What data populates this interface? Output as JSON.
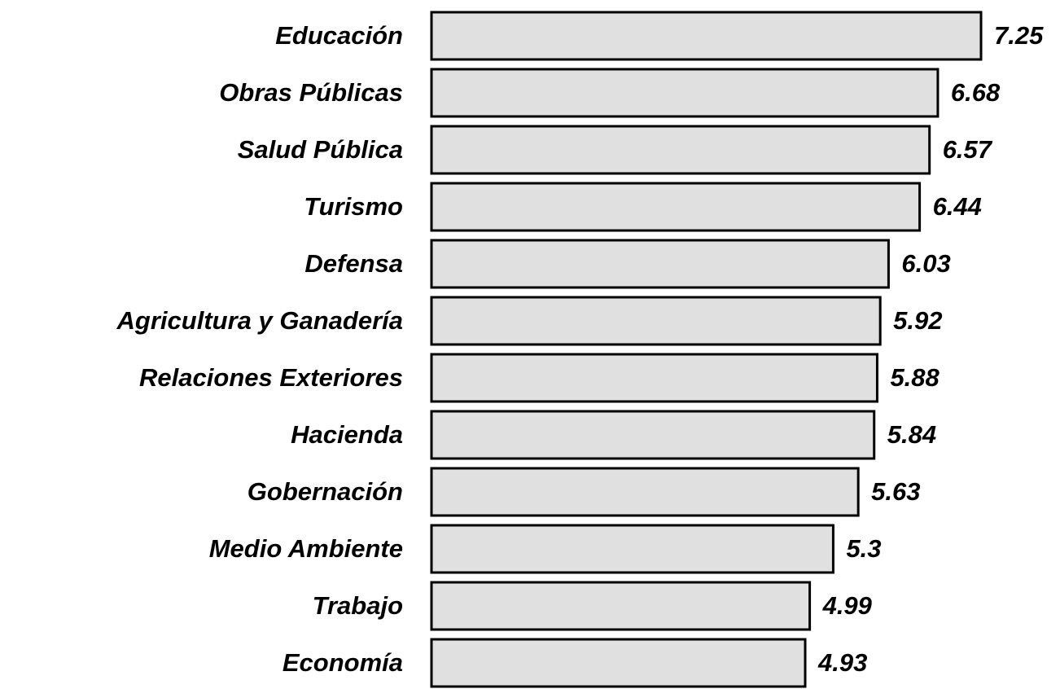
{
  "chart_data": {
    "type": "bar",
    "orientation": "horizontal",
    "categories": [
      "Educación",
      "Obras Públicas",
      "Salud Pública",
      "Turismo",
      "Defensa",
      "Agricultura y Ganadería",
      "Relaciones Exteriores",
      "Hacienda",
      "Gobernación",
      "Medio Ambiente",
      "Trabajo",
      "Economía"
    ],
    "values": [
      7.25,
      6.68,
      6.57,
      6.44,
      6.03,
      5.92,
      5.88,
      5.84,
      5.63,
      5.3,
      4.99,
      4.93
    ],
    "color": "#e0e0e0",
    "xlim": [
      0,
      7.25
    ]
  }
}
